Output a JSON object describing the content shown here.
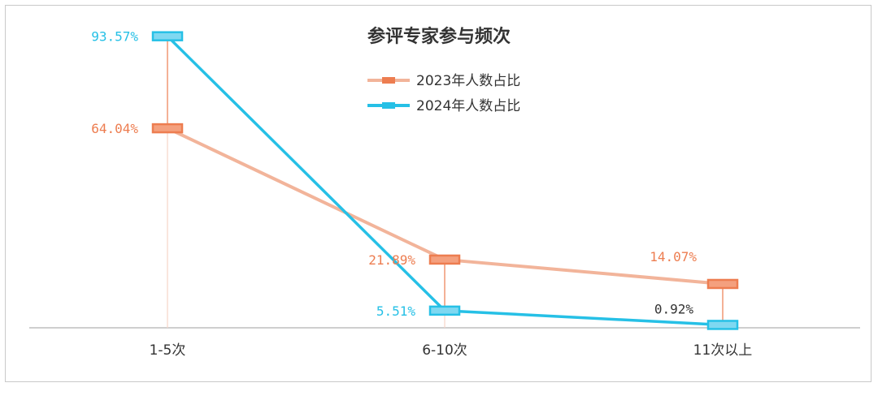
{
  "chart_data": {
    "type": "line",
    "title": "参评专家参与频次",
    "categories": [
      "1-5次",
      "6-10次",
      "11次以上"
    ],
    "series": [
      {
        "name": "2023年人数占比",
        "values": [
          64.04,
          21.89,
          14.07
        ],
        "labels": [
          "64.04%",
          "21.89%",
          "14.07%"
        ],
        "line_color": "#F2B49A",
        "marker_color": "#ED7D50",
        "label_color": "#ED7D50"
      },
      {
        "name": "2024年人数占比",
        "values": [
          93.57,
          5.51,
          0.92
        ],
        "labels": [
          "93.57%",
          "5.51%",
          "0.92%"
        ],
        "line_color": "#26C0E6",
        "marker_color": "#26C0E6",
        "label_colors": [
          "#26C0E6",
          "#26C0E6",
          "#333333"
        ]
      }
    ],
    "ylim": [
      0,
      100
    ],
    "grid": false,
    "legend": "top-center"
  }
}
